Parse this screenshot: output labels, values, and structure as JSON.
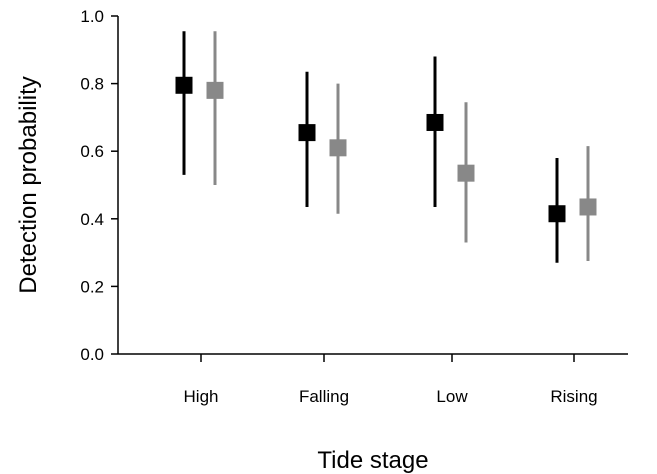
{
  "chart_data": {
    "type": "scatter",
    "title": "",
    "xlabel": "Tide stage",
    "ylabel": "Detection probability",
    "categories": [
      "High",
      "Falling",
      "Low",
      "Rising"
    ],
    "ylim": [
      0.0,
      1.0
    ],
    "yticks": [
      "0.0",
      "0.2",
      "0.4",
      "0.6",
      "0.8",
      "1.0"
    ],
    "grid": false,
    "legend": "none",
    "series": [
      {
        "color": "#000000",
        "values": [
          0.795,
          0.655,
          0.685,
          0.415
        ],
        "lower": [
          0.53,
          0.435,
          0.435,
          0.27
        ],
        "upper": [
          0.955,
          0.835,
          0.88,
          0.58
        ]
      },
      {
        "color": "#888888",
        "values": [
          0.78,
          0.61,
          0.535,
          0.435
        ],
        "lower": [
          0.5,
          0.415,
          0.33,
          0.275
        ],
        "upper": [
          0.955,
          0.8,
          0.745,
          0.615
        ]
      }
    ]
  }
}
